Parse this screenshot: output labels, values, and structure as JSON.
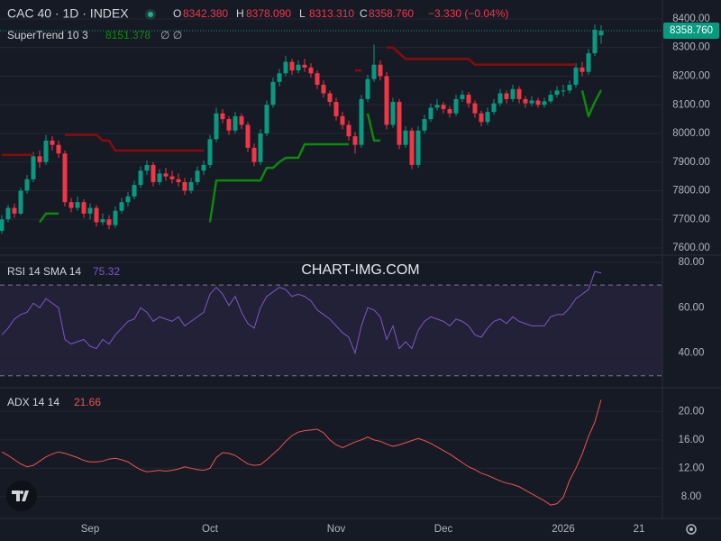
{
  "header": {
    "symbol": "CAC 40 · 1D · INDEX",
    "o": "O",
    "open": "8342.380",
    "h": "H",
    "high": "8378.090",
    "l": "L",
    "low": "8313.310",
    "c": "C",
    "close": "8358.760",
    "change": "−3.330 (−0.04%)",
    "color": "#f23645",
    "watermark": "CHART-IMG.COM"
  },
  "chart_data": [
    {
      "type": "candlestick",
      "categories": [
        null,
        null,
        null,
        null,
        null,
        null,
        null,
        null,
        null,
        null,
        null,
        null,
        null,
        null,
        "Sep",
        null,
        null,
        null,
        null,
        null,
        null,
        null,
        null,
        null,
        null,
        null,
        null,
        null,
        null,
        null,
        null,
        null,
        null,
        "Oct",
        null,
        null,
        null,
        null,
        null,
        null,
        null,
        null,
        null,
        null,
        null,
        null,
        null,
        null,
        null,
        null,
        null,
        null,
        null,
        "Nov",
        null,
        null,
        null,
        null,
        null,
        null,
        null,
        null,
        null,
        null,
        null,
        null,
        null,
        null,
        null,
        null,
        "Dec",
        null,
        null,
        null,
        null,
        null,
        null,
        null,
        null,
        null,
        null,
        null,
        null,
        null,
        null,
        null,
        null,
        null,
        null,
        "2026",
        null,
        null,
        null,
        null,
        null,
        null,
        null,
        null,
        null,
        null,
        null,
        "21"
      ],
      "ohlc": [
        [
          7660,
          7715,
          7650,
          7700
        ],
        [
          7700,
          7750,
          7690,
          7740
        ],
        [
          7740,
          7755,
          7705,
          7720
        ],
        [
          7720,
          7810,
          7715,
          7800
        ],
        [
          7800,
          7855,
          7790,
          7840
        ],
        [
          7840,
          7935,
          7830,
          7920
        ],
        [
          7920,
          7940,
          7880,
          7900
        ],
        [
          7900,
          7995,
          7890,
          7975
        ],
        [
          7975,
          7990,
          7940,
          7960
        ],
        [
          7960,
          7975,
          7915,
          7930
        ],
        [
          7930,
          7940,
          7745,
          7760
        ],
        [
          7760,
          7775,
          7725,
          7740
        ],
        [
          7740,
          7780,
          7730,
          7760
        ],
        [
          7760,
          7770,
          7705,
          7720
        ],
        [
          7720,
          7755,
          7700,
          7740
        ],
        [
          7740,
          7750,
          7675,
          7690
        ],
        [
          7690,
          7720,
          7680,
          7700
        ],
        [
          7700,
          7715,
          7665,
          7680
        ],
        [
          7680,
          7745,
          7670,
          7730
        ],
        [
          7730,
          7775,
          7720,
          7760
        ],
        [
          7760,
          7795,
          7745,
          7780
        ],
        [
          7780,
          7835,
          7770,
          7820
        ],
        [
          7820,
          7885,
          7810,
          7870
        ],
        [
          7870,
          7905,
          7855,
          7890
        ],
        [
          7890,
          7900,
          7815,
          7830
        ],
        [
          7830,
          7875,
          7820,
          7860
        ],
        [
          7860,
          7880,
          7835,
          7850
        ],
        [
          7850,
          7870,
          7825,
          7840
        ],
        [
          7840,
          7860,
          7815,
          7830
        ],
        [
          7830,
          7845,
          7785,
          7800
        ],
        [
          7800,
          7845,
          7790,
          7830
        ],
        [
          7830,
          7885,
          7820,
          7870
        ],
        [
          7870,
          7905,
          7855,
          7890
        ],
        [
          7890,
          7995,
          7880,
          7980
        ],
        [
          7980,
          8090,
          7970,
          8070
        ],
        [
          8070,
          8085,
          8035,
          8050
        ],
        [
          8050,
          8060,
          7995,
          8010
        ],
        [
          8010,
          8075,
          8000,
          8060
        ],
        [
          8060,
          8070,
          8015,
          8030
        ],
        [
          8030,
          8040,
          7935,
          7950
        ],
        [
          7950,
          7965,
          7885,
          7900
        ],
        [
          7900,
          8015,
          7890,
          8000
        ],
        [
          8000,
          8115,
          7990,
          8100
        ],
        [
          8100,
          8195,
          8090,
          8180
        ],
        [
          8180,
          8225,
          8165,
          8210
        ],
        [
          8210,
          8270,
          8200,
          8250
        ],
        [
          8250,
          8260,
          8205,
          8220
        ],
        [
          8220,
          8255,
          8210,
          8240
        ],
        [
          8240,
          8260,
          8215,
          8230
        ],
        [
          8230,
          8245,
          8195,
          8210
        ],
        [
          8210,
          8220,
          8155,
          8170
        ],
        [
          8170,
          8185,
          8125,
          8140
        ],
        [
          8140,
          8150,
          8095,
          8110
        ],
        [
          8110,
          8125,
          8045,
          8060
        ],
        [
          8060,
          8075,
          8015,
          8030
        ],
        [
          8030,
          8045,
          7975,
          7990
        ],
        [
          7990,
          8005,
          7930,
          7960
        ],
        [
          7960,
          8135,
          7950,
          8120
        ],
        [
          8120,
          8205,
          8110,
          8190
        ],
        [
          8190,
          8310,
          8180,
          8240
        ],
        [
          8240,
          8255,
          8185,
          8200
        ],
        [
          8200,
          8215,
          8015,
          8030
        ],
        [
          8030,
          8125,
          8020,
          8110
        ],
        [
          8110,
          8120,
          7945,
          7960
        ],
        [
          7960,
          8025,
          7950,
          8010
        ],
        [
          8010,
          8020,
          7875,
          7890
        ],
        [
          7890,
          8025,
          7880,
          8010
        ],
        [
          8010,
          8065,
          8000,
          8050
        ],
        [
          8050,
          8105,
          8040,
          8090
        ],
        [
          8090,
          8120,
          8080,
          8100
        ],
        [
          8100,
          8110,
          8070,
          8085
        ],
        [
          8085,
          8095,
          8055,
          8070
        ],
        [
          8070,
          8135,
          8060,
          8120
        ],
        [
          8120,
          8150,
          8110,
          8135
        ],
        [
          8135,
          8145,
          8090,
          8105
        ],
        [
          8105,
          8115,
          8055,
          8070
        ],
        [
          8070,
          8080,
          8025,
          8040
        ],
        [
          8040,
          8090,
          8030,
          8075
        ],
        [
          8075,
          8120,
          8065,
          8105
        ],
        [
          8105,
          8155,
          8095,
          8140
        ],
        [
          8140,
          8150,
          8105,
          8120
        ],
        [
          8120,
          8170,
          8110,
          8155
        ],
        [
          8155,
          8165,
          8105,
          8120
        ],
        [
          8120,
          8130,
          8090,
          8105
        ],
        [
          8105,
          8130,
          8095,
          8115
        ],
        [
          8115,
          8125,
          8090,
          8100
        ],
        [
          8100,
          8125,
          8090,
          8112
        ],
        [
          8112,
          8150,
          8105,
          8135
        ],
        [
          8135,
          8165,
          8125,
          8150
        ],
        [
          8150,
          8170,
          8130,
          8150
        ],
        [
          8150,
          8185,
          8140,
          8170
        ],
        [
          8170,
          8245,
          8160,
          8230
        ],
        [
          8230,
          8250,
          8200,
          8215
        ],
        [
          8215,
          8295,
          8205,
          8280
        ],
        [
          8280,
          8380,
          8270,
          8362.09
        ],
        [
          8342.38,
          8378.09,
          8313.31,
          8358.76
        ],
        null,
        null,
        null,
        null,
        null,
        null
      ],
      "up_color": "#089981",
      "down_color": "#f23645",
      "supertrend": {
        "name": "SuperTrend 10 3",
        "flags": "∅  ∅",
        "up_color": "#0b8a0b",
        "down_color": "#8b0a0a",
        "up": [
          null,
          null,
          null,
          null,
          null,
          null,
          7690,
          7720,
          7720,
          7720,
          null,
          null,
          null,
          null,
          null,
          null,
          null,
          null,
          null,
          null,
          null,
          null,
          null,
          null,
          null,
          null,
          null,
          null,
          null,
          null,
          null,
          null,
          null,
          7690,
          7836,
          7836,
          7836,
          7836,
          7836,
          7836,
          7836,
          7836,
          7880,
          7880,
          7900,
          7915,
          7915,
          7915,
          7962,
          7962,
          7962,
          7962,
          7962,
          7962,
          7962,
          7962,
          null,
          null,
          8070,
          7975,
          7975,
          null,
          null,
          null,
          null,
          null,
          null,
          null,
          null,
          null,
          null,
          null,
          null,
          null,
          null,
          null,
          null,
          null,
          null,
          null,
          null,
          null,
          null,
          null,
          null,
          null,
          null,
          null,
          null,
          null,
          null,
          null,
          8150,
          8060,
          8110,
          8151.378,
          null,
          null,
          null,
          null,
          null,
          null
        ],
        "down": [
          7925,
          7925,
          7925,
          7925,
          7925,
          7925,
          null,
          null,
          null,
          null,
          7995,
          7995,
          7995,
          7995,
          7995,
          7995,
          7975,
          7975,
          7940,
          7940,
          7940,
          7940,
          7940,
          7940,
          7940,
          7940,
          7940,
          7940,
          7940,
          7940,
          7940,
          7940,
          7940,
          null,
          null,
          null,
          null,
          null,
          null,
          null,
          null,
          null,
          null,
          null,
          null,
          null,
          null,
          null,
          null,
          null,
          null,
          null,
          null,
          null,
          null,
          null,
          8220,
          8220,
          null,
          null,
          null,
          8300,
          8300,
          8280,
          8260,
          8260,
          8260,
          8260,
          8260,
          8260,
          8260,
          8260,
          8260,
          8260,
          8260,
          8240,
          8240,
          8240,
          8240,
          8240,
          8240,
          8240,
          8240,
          8240,
          8240,
          8240,
          8240,
          8240,
          8240,
          8240,
          8240,
          8240,
          null,
          null,
          null,
          null,
          null,
          null,
          null,
          null,
          null,
          null
        ]
      },
      "ylim": [
        7578,
        8466
      ],
      "yticks": [
        {
          "value": 8400,
          "label": "8400.00"
        },
        {
          "value": 8300,
          "label": "8300.00"
        },
        {
          "value": 8200,
          "label": "8200.00"
        },
        {
          "value": 8100,
          "label": "8100.00"
        },
        {
          "value": 8000,
          "label": "8000.00"
        },
        {
          "value": 7900,
          "label": "7900.00"
        },
        {
          "value": 7800,
          "label": "7800.00"
        },
        {
          "value": 7700,
          "label": "7700.00"
        },
        {
          "value": 7600,
          "label": "7600.00"
        }
      ],
      "grid": true
    },
    {
      "type": "line",
      "series": [
        {
          "name": "RSI 14 SMA 14",
          "color": "#7e57c2",
          "values": [
            48,
            51,
            55,
            57,
            58,
            62,
            60,
            64,
            62,
            60,
            46,
            44,
            45,
            46,
            43,
            42,
            46,
            44,
            48,
            51,
            54,
            55,
            60,
            58,
            54,
            56,
            55,
            54,
            56,
            52,
            54,
            56,
            58,
            66,
            69,
            66,
            61,
            65,
            58,
            53,
            51,
            60,
            65,
            67,
            69,
            68,
            65,
            66,
            65,
            63,
            59,
            57,
            55,
            52,
            49,
            47,
            40,
            52,
            60,
            59,
            56,
            46,
            52,
            42,
            45,
            42,
            50,
            54,
            56,
            55,
            54,
            52,
            55,
            54,
            52,
            48,
            47,
            51,
            54,
            55,
            53,
            56,
            54,
            53,
            52,
            52,
            52,
            56,
            57,
            57,
            60,
            64,
            66,
            68,
            76,
            75.32,
            null,
            null,
            null,
            null,
            null,
            null
          ]
        }
      ],
      "band": [
        30,
        70
      ],
      "band_color": "#7e57c2",
      "ylim": [
        25.5,
        82.8
      ],
      "yticks": [
        {
          "value": 80,
          "label": "80.00"
        },
        {
          "value": 60,
          "label": "60.00"
        },
        {
          "value": 40,
          "label": "40.00"
        }
      ],
      "grid": true
    },
    {
      "type": "line",
      "series": [
        {
          "name": "ADX 14 14",
          "color": "#f0524f",
          "values": [
            14.3,
            13.8,
            13.2,
            12.6,
            12.2,
            12.4,
            13.0,
            13.6,
            14.0,
            14.3,
            14.1,
            13.8,
            13.5,
            13.1,
            12.9,
            12.9,
            13.0,
            13.3,
            13.4,
            13.2,
            12.9,
            12.3,
            11.8,
            11.5,
            11.6,
            11.7,
            11.6,
            11.7,
            11.9,
            12.2,
            12.0,
            11.8,
            11.7,
            12.0,
            13.5,
            14.2,
            14.1,
            13.8,
            13.2,
            12.6,
            12.4,
            12.5,
            13.2,
            14.0,
            14.8,
            15.8,
            16.6,
            17.1,
            17.3,
            17.4,
            17.5,
            17.0,
            16.0,
            15.3,
            14.9,
            15.3,
            15.7,
            16.0,
            16.4,
            16.0,
            15.8,
            15.4,
            15.1,
            15.3,
            15.6,
            15.9,
            16.2,
            15.9,
            15.5,
            15.0,
            14.5,
            14.0,
            13.4,
            12.8,
            12.2,
            11.8,
            11.3,
            11.0,
            10.6,
            10.2,
            9.9,
            9.7,
            9.4,
            8.9,
            8.4,
            7.9,
            7.4,
            6.8,
            7.0,
            7.9,
            10.3,
            12.0,
            14.0,
            16.5,
            18.5,
            21.66,
            null,
            null,
            null,
            null,
            null,
            null
          ]
        }
      ],
      "ylim": [
        5.3,
        23.1
      ],
      "yticks": [
        {
          "value": 20,
          "label": "20.00"
        },
        {
          "value": 16,
          "label": "16.00"
        },
        {
          "value": 12,
          "label": "12.00"
        },
        {
          "value": 8,
          "label": "8.00"
        }
      ],
      "grid": true
    }
  ]
}
